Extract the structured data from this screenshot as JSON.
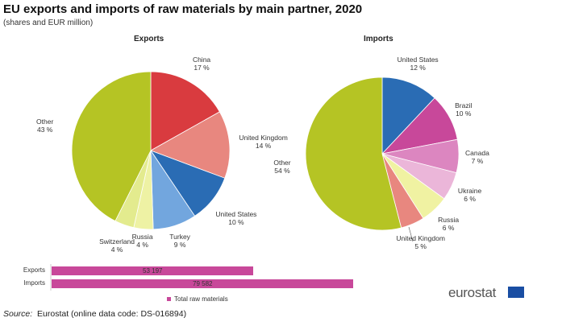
{
  "title": "EU exports and imports of raw materials by main partner, 2020",
  "subtitle": "(shares and EUR million)",
  "chart_data": [
    {
      "type": "pie",
      "title": "Exports",
      "unit": "%",
      "slices": [
        {
          "label": "China",
          "value": 17,
          "color": "#d93b3f"
        },
        {
          "label": "United Kingdom",
          "value": 14,
          "color": "#e8877f"
        },
        {
          "label": "United States",
          "value": 10,
          "color": "#2a6cb4"
        },
        {
          "label": "Turkey",
          "value": 9,
          "color": "#72a6de"
        },
        {
          "label": "Russia",
          "value": 4,
          "color": "#eef2a4"
        },
        {
          "label": "Switzerland",
          "value": 4,
          "color": "#e3eb8e"
        },
        {
          "label": "Other",
          "value": 43,
          "color": "#b5c424"
        }
      ]
    },
    {
      "type": "pie",
      "title": "Imports",
      "unit": "%",
      "slices": [
        {
          "label": "United States",
          "value": 12,
          "color": "#2a6cb4"
        },
        {
          "label": "Brazil",
          "value": 10,
          "color": "#c8489a"
        },
        {
          "label": "Canada",
          "value": 7,
          "color": "#dc86c0"
        },
        {
          "label": "Ukraine",
          "value": 6,
          "color": "#ebb6d9"
        },
        {
          "label": "Russia",
          "value": 6,
          "color": "#f0f2a2"
        },
        {
          "label": "United Kingdom",
          "value": 5,
          "color": "#e8877f"
        },
        {
          "label": "Other",
          "value": 54,
          "color": "#b5c424"
        }
      ]
    },
    {
      "type": "bar",
      "orientation": "horizontal",
      "categories": [
        "Exports",
        "Imports"
      ],
      "series": [
        {
          "name": "Total raw materials",
          "values": [
            53197,
            79582
          ],
          "value_labels": [
            "53 197",
            "79 582"
          ],
          "color": "#c8489a"
        }
      ]
    }
  ],
  "source": {
    "prefix": "Source:",
    "text": "Eurostat (online data code: DS-016894)"
  },
  "logo": "eurostat"
}
